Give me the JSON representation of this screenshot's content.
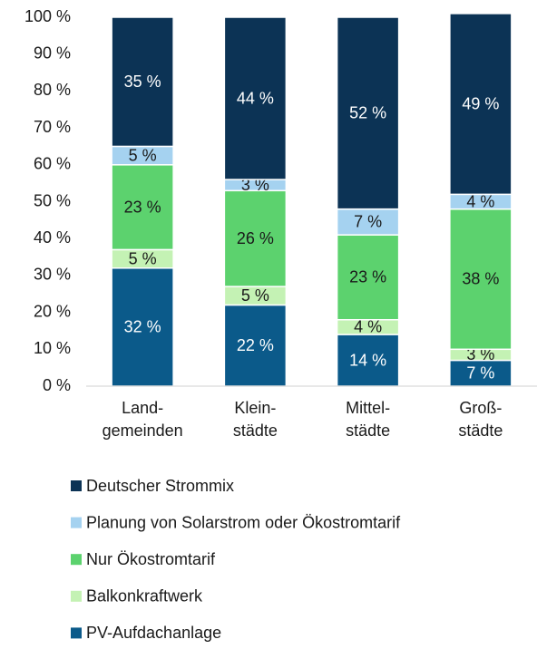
{
  "chart_data": {
    "type": "stacked_bar",
    "categories": [
      [
        "Land-",
        "gemeinden"
      ],
      [
        "Klein-",
        "städte"
      ],
      [
        "Mittel-",
        "städte"
      ],
      [
        "Groß-",
        "städte"
      ]
    ],
    "series": [
      {
        "name": "PV-Aufdachanlage",
        "color": "#0b5a8a",
        "label_color": "#ffffff",
        "values": [
          32,
          22,
          14,
          7
        ],
        "value_labels": [
          "32 %",
          "22 %",
          "14 %",
          "7 %"
        ]
      },
      {
        "name": "Balkonkraftwerk",
        "color": "#c4f2b4",
        "label_color": "#1a1a1a",
        "values": [
          5,
          5,
          4,
          3
        ],
        "value_labels": [
          "5 %",
          "5 %",
          "4 %",
          "3 %"
        ]
      },
      {
        "name": "Nur Ökostromtarif",
        "color": "#5cd26e",
        "label_color": "#1a1a1a",
        "values": [
          23,
          26,
          23,
          38
        ],
        "value_labels": [
          "23 %",
          "26 %",
          "23 %",
          "38 %"
        ]
      },
      {
        "name": "Planung von Solarstrom oder Ökostromtarif",
        "color": "#a5d2f0",
        "label_color": "#1a1a1a",
        "values": [
          5,
          3,
          7,
          4
        ],
        "value_labels": [
          "5 %",
          "3 %",
          "7 %",
          "4 %"
        ]
      },
      {
        "name": "Deutscher Strommix",
        "color": "#0c3355",
        "label_color": "#ffffff",
        "values": [
          35,
          44,
          52,
          49
        ],
        "value_labels": [
          "35 %",
          "44 %",
          "52 %",
          "49 %"
        ]
      }
    ],
    "ylim": [
      0,
      100
    ],
    "yticks": [
      {
        "value": 0,
        "label": "0 %"
      },
      {
        "value": 10,
        "label": "10 %"
      },
      {
        "value": 20,
        "label": "20 %"
      },
      {
        "value": 30,
        "label": "30 %"
      },
      {
        "value": 40,
        "label": "40 %"
      },
      {
        "value": 50,
        "label": "50 %"
      },
      {
        "value": 60,
        "label": "60 %"
      },
      {
        "value": 70,
        "label": "70 %"
      },
      {
        "value": 80,
        "label": "80 %"
      },
      {
        "value": 90,
        "label": "90 %"
      },
      {
        "value": 100,
        "label": "100 %"
      }
    ],
    "grid": false,
    "legend": "bottom"
  }
}
